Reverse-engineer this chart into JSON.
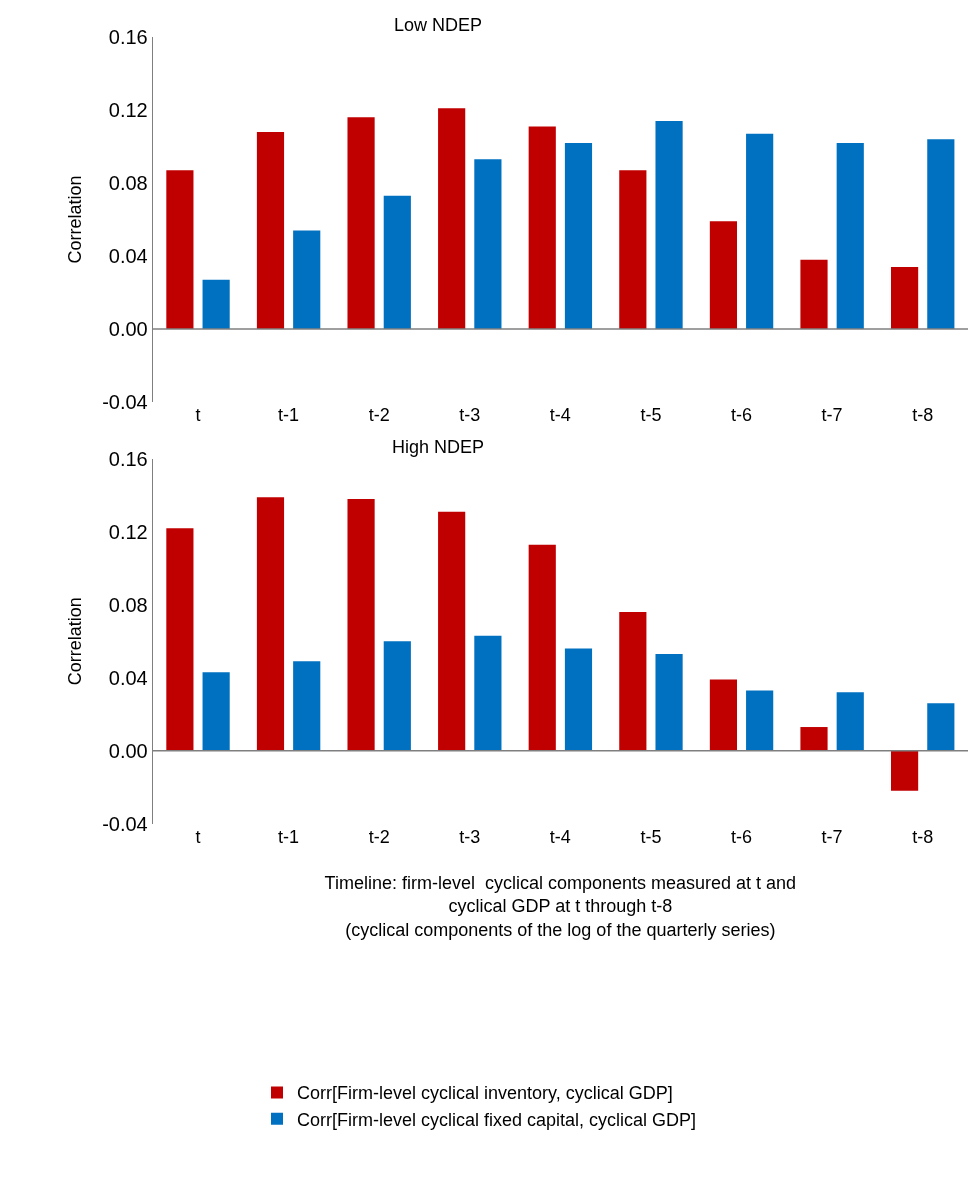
{
  "chart_data": [
    {
      "type": "bar",
      "title": "Low NDEP",
      "ylabel": "Correlation",
      "categories": [
        "t",
        "t-1",
        "t-2",
        "t-3",
        "t-4",
        "t-5",
        "t-6",
        "t-7",
        "t-8"
      ],
      "series": [
        {
          "name": "Corr[Firm-level cyclical inventory, cyclical GDP]",
          "color": "#c00000",
          "values": [
            0.087,
            0.108,
            0.116,
            0.121,
            0.111,
            0.087,
            0.059,
            0.038,
            0.034
          ]
        },
        {
          "name": "Corr[Firm-level cyclical fixed capital, cyclical GDP]",
          "color": "#0070c0",
          "values": [
            0.027,
            0.054,
            0.073,
            0.093,
            0.102,
            0.114,
            0.107,
            0.102,
            0.104
          ]
        }
      ],
      "ylim": [
        -0.04,
        0.16
      ],
      "yticks": [
        {
          "value": -0.04,
          "label": "-0.04"
        },
        {
          "value": 0,
          "label": "0.00"
        },
        {
          "value": 0.04,
          "label": "0.04"
        },
        {
          "value": 0.08,
          "label": "0.08"
        },
        {
          "value": 0.12,
          "label": "0.12"
        },
        {
          "value": 0.16,
          "label": "0.16"
        }
      ],
      "legend": "bottom"
    },
    {
      "type": "bar",
      "title": "High NDEP",
      "ylabel": "Correlation",
      "xlabel": "Timeline: firm-level  cyclical components measured at t and\ncyclical GDP at t through t-8\n(cyclical components of the log of the quarterly series)",
      "categories": [
        "t",
        "t-1",
        "t-2",
        "t-3",
        "t-4",
        "t-5",
        "t-6",
        "t-7",
        "t-8"
      ],
      "series": [
        {
          "color": "#c00000",
          "values": [
            0.122,
            0.139,
            0.138,
            0.131,
            0.113,
            0.076,
            0.039,
            0.013,
            -0.022
          ]
        },
        {
          "color": "#0070c0",
          "values": [
            0.043,
            0.049,
            0.06,
            0.063,
            0.056,
            0.053,
            0.033,
            0.032,
            0.026
          ]
        }
      ],
      "ylim": [
        -0.04,
        0.16
      ],
      "yticks": [
        {
          "value": -0.04,
          "label": "-0.04"
        },
        {
          "value": 0,
          "label": "0.00"
        },
        {
          "value": 0.04,
          "label": "0.04"
        },
        {
          "value": 0.08,
          "label": "0.08"
        },
        {
          "value": 0.12,
          "label": "0.12"
        },
        {
          "value": 0.16,
          "label": "0.16"
        }
      ]
    }
  ]
}
